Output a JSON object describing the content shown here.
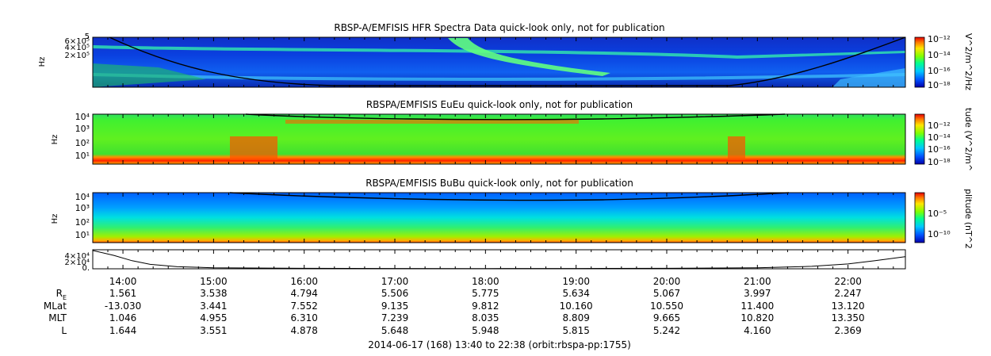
{
  "chart_data": [
    {
      "type": "heatmap",
      "title": "RBSP-A/EMFISIS  HFR Spectra Data quick-look only, not for publication",
      "ylabel": "Hz",
      "ytick_labels": [
        "5",
        "6×10⁵",
        "4×10⁵",
        "2×10⁵"
      ],
      "colorbar_label": "V^2/m^2/Hz",
      "colorbar_ticks": [
        "10⁻¹²",
        "10⁻¹⁴",
        "10⁻¹⁶",
        "10⁻¹⁸"
      ],
      "colormap": [
        "#0000aa",
        "#0050ff",
        "#00c8ff",
        "#00ff90",
        "#80ff00",
        "#ffe600",
        "#ff7800",
        "#e60000"
      ]
    },
    {
      "type": "heatmap",
      "title": "RBSPA/EMFISIS  EuEu quick-look only, not for publication",
      "ylabel": "Hz",
      "ytick_labels": [
        "10⁴",
        "10³",
        "10²",
        "10¹"
      ],
      "colorbar_label": "tude (V^2/m^",
      "colorbar_ticks": [
        "10⁻¹²",
        "10⁻¹⁴",
        "10⁻¹⁶",
        "10⁻¹⁸"
      ]
    },
    {
      "type": "heatmap",
      "title": "RBSPA/EMFISIS  BuBu quick-look only, not for publication",
      "ylabel": "Hz",
      "ytick_labels": [
        "10⁴",
        "10³",
        "10²",
        "10¹"
      ],
      "colorbar_label": "plitude (nT^2",
      "colorbar_ticks": [
        "10⁻⁵",
        "10⁻¹⁰"
      ]
    },
    {
      "type": "line",
      "ytick_labels": [
        "4×10⁴",
        "2×10⁴",
        "0."
      ],
      "x_hours": [
        13.67,
        13.9,
        14.1,
        14.3,
        14.6,
        15.0,
        16.0,
        17.0,
        18.0,
        19.0,
        20.0,
        21.0,
        21.6,
        22.0,
        22.3,
        22.63
      ],
      "y": [
        45000,
        33000,
        20000,
        11000,
        5000,
        2500,
        1200,
        700,
        600,
        700,
        1200,
        2500,
        6000,
        12000,
        20000,
        30000
      ],
      "ylim": [
        0,
        47000
      ]
    }
  ],
  "time_axis": {
    "start_hour": 13.667,
    "end_hour": 22.633,
    "tick_labels": [
      "14:00",
      "15:00",
      "16:00",
      "17:00",
      "18:00",
      "19:00",
      "20:00",
      "21:00",
      "22:00"
    ]
  },
  "ephemeris": [
    {
      "label": "R",
      "label_sub": "E",
      "values": [
        "1.561",
        "3.538",
        "4.794",
        "5.506",
        "5.775",
        "5.634",
        "5.067",
        "3.997",
        "2.247"
      ]
    },
    {
      "label": "MLat",
      "values": [
        "-13.030",
        "3.441",
        "7.552",
        "9.135",
        "9.812",
        "10.160",
        "10.550",
        "11.400",
        "13.120"
      ]
    },
    {
      "label": "MLT",
      "values": [
        "1.046",
        "4.955",
        "6.310",
        "7.239",
        "8.035",
        "8.809",
        "9.665",
        "10.820",
        "13.350"
      ]
    },
    {
      "label": "L",
      "values": [
        "1.644",
        "3.551",
        "4.878",
        "5.648",
        "5.948",
        "5.815",
        "5.242",
        "4.160",
        "2.369"
      ]
    }
  ],
  "footer": "2014-06-17 (168) 13:40 to 22:38 (orbit:rbspa-pp:1755)"
}
